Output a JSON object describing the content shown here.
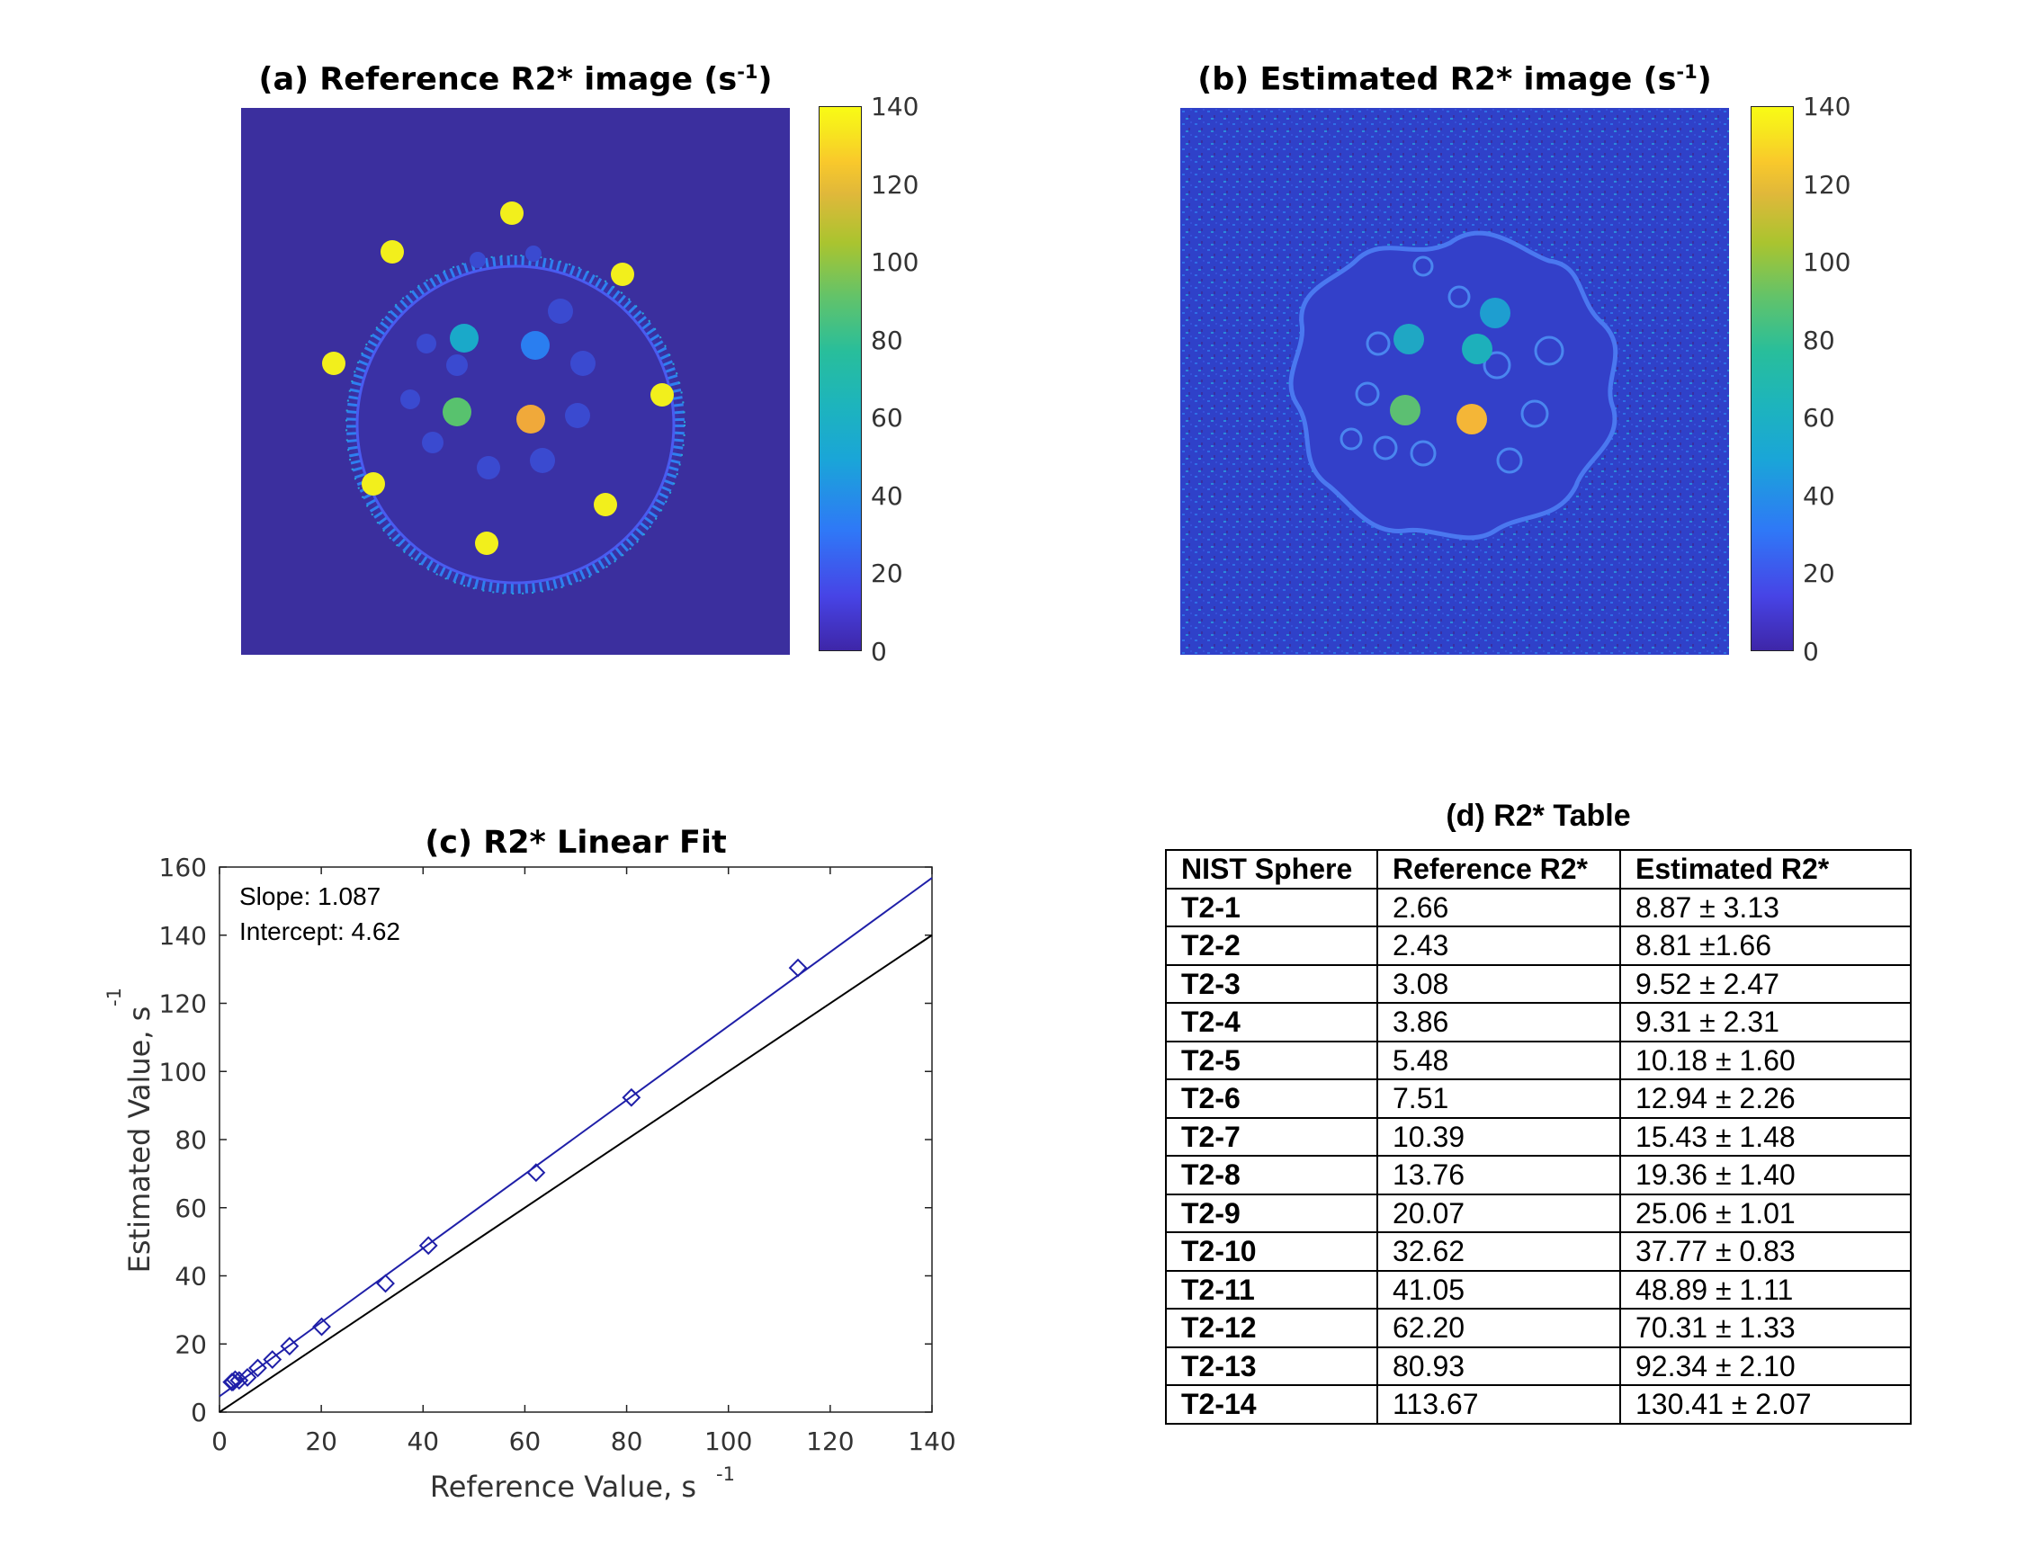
{
  "panel_a": {
    "title": "(a) Reference R2* image (s",
    "title_sup": "-1",
    "title_end": ")",
    "colorbar_ticks": [
      "140",
      "120",
      "100",
      "80",
      "60",
      "40",
      "20",
      "0"
    ]
  },
  "panel_b": {
    "title": "(b) Estimated R2* image (s",
    "title_sup": "-1",
    "title_end": ")",
    "colorbar_ticks": [
      "140",
      "120",
      "100",
      "80",
      "60",
      "40",
      "20",
      "0"
    ]
  },
  "chart_data": {
    "type": "scatter",
    "title": "(c) R2* Linear Fit",
    "xlabel": "Reference Value, s",
    "xlabel_sup": "-1",
    "ylabel": "Estimated Value, s",
    "ylabel_sup": "-1",
    "xlim": [
      0,
      140
    ],
    "ylim": [
      0,
      160
    ],
    "xticks": [
      0,
      20,
      40,
      60,
      80,
      100,
      120,
      140
    ],
    "yticks": [
      0,
      20,
      40,
      60,
      80,
      100,
      120,
      140,
      160
    ],
    "annotations": [
      "Slope: 1.087",
      "Intercept: 4.62"
    ],
    "fit": {
      "slope": 1.087,
      "intercept": 4.62
    },
    "identity_line": true,
    "x": [
      2.66,
      2.43,
      3.08,
      3.86,
      5.48,
      7.51,
      10.39,
      13.76,
      20.07,
      32.62,
      41.05,
      62.2,
      80.93,
      113.67
    ],
    "y": [
      8.87,
      8.81,
      9.52,
      9.31,
      10.18,
      12.94,
      15.43,
      19.36,
      25.06,
      37.77,
      48.89,
      70.31,
      92.34,
      130.41
    ],
    "colors": {
      "points": "#1f1fa8",
      "fit": "#1f1fa8",
      "identity": "#000000"
    }
  },
  "table": {
    "title": "(d) R2* Table",
    "headers": [
      "NIST Sphere",
      "Reference R2*",
      "Estimated R2*"
    ],
    "rows": [
      [
        "T2-1",
        "2.66",
        "8.87 ± 3.13"
      ],
      [
        "T2-2",
        "2.43",
        "8.81 ±1.66"
      ],
      [
        "T2-3",
        "3.08",
        "9.52 ± 2.47"
      ],
      [
        "T2-4",
        "3.86",
        "9.31 ± 2.31"
      ],
      [
        "T2-5",
        "5.48",
        "10.18 ± 1.60"
      ],
      [
        "T2-6",
        "7.51",
        "12.94 ± 2.26"
      ],
      [
        "T2-7",
        "10.39",
        "15.43 ± 1.48"
      ],
      [
        "T2-8",
        "13.76",
        "19.36 ± 1.40"
      ],
      [
        "T2-9",
        "20.07",
        "25.06 ± 1.01"
      ],
      [
        "T2-10",
        "32.62",
        "37.77 ± 0.83"
      ],
      [
        "T2-11",
        "41.05",
        "48.89 ± 1.11"
      ],
      [
        "T2-12",
        "62.20",
        "70.31 ± 1.33"
      ],
      [
        "T2-13",
        "80.93",
        "92.34 ± 2.10"
      ],
      [
        "T2-14",
        "113.67",
        "130.41 ± 2.07"
      ]
    ]
  }
}
